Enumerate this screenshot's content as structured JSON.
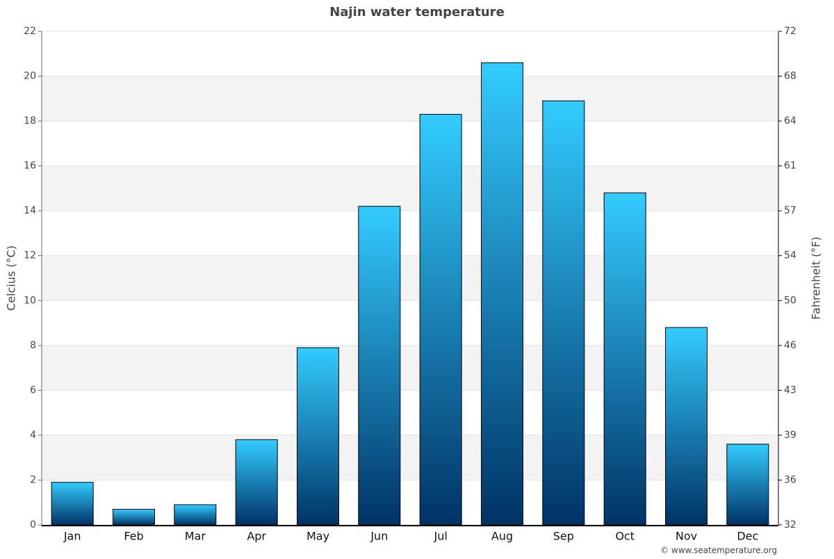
{
  "chart_data": {
    "type": "bar",
    "title": "Najin water temperature",
    "y_label": "Celcius (°C)",
    "y2_label": "Fahrenheit (°F)",
    "source": "© www.seatemperature.org",
    "categories": [
      "Jan",
      "Feb",
      "Mar",
      "Apr",
      "May",
      "Jun",
      "Jul",
      "Aug",
      "Sep",
      "Oct",
      "Nov",
      "Dec"
    ],
    "values": [
      1.9,
      0.7,
      0.9,
      3.8,
      7.9,
      14.2,
      18.3,
      20.6,
      18.9,
      14.8,
      8.8,
      3.6
    ],
    "color": "#33ccff",
    "ylim": [
      0,
      22
    ],
    "yticks": [
      0,
      2,
      4,
      6,
      8,
      10,
      12,
      14,
      16,
      18,
      20,
      22
    ],
    "y2lim": [
      32,
      71.6
    ],
    "y2ticks": [
      32,
      {
        "value": 35.6,
        "label": "36"
      },
      {
        "value": 39.2,
        "label": "39"
      },
      {
        "value": 42.8,
        "label": "43"
      },
      {
        "value": 46.4,
        "label": "46"
      },
      50,
      {
        "value": 53.6,
        "label": "54"
      },
      {
        "value": 57.2,
        "label": "57"
      },
      {
        "value": 60.8,
        "label": "61"
      },
      {
        "value": 64.4,
        "label": "64"
      },
      68,
      {
        "value": 71.6,
        "label": "72"
      }
    ],
    "grid": true
  }
}
